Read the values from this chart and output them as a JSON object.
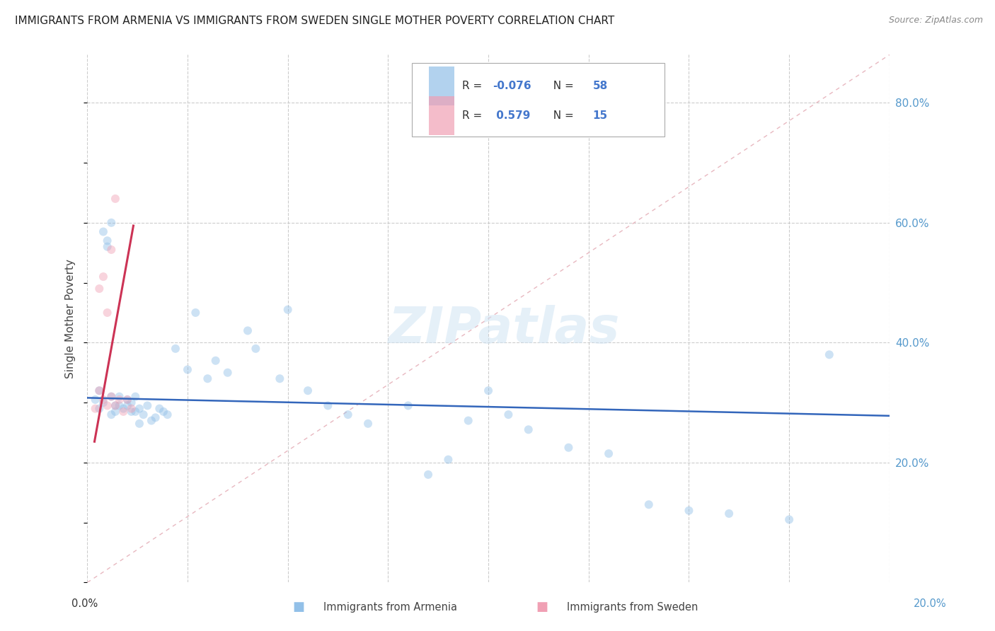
{
  "title": "IMMIGRANTS FROM ARMENIA VS IMMIGRANTS FROM SWEDEN SINGLE MOTHER POVERTY CORRELATION CHART",
  "source": "Source: ZipAtlas.com",
  "ylabel": "Single Mother Poverty",
  "legend_label1": "Immigrants from Armenia",
  "legend_label2": "Immigrants from Sweden",
  "yaxis_labels": [
    "20.0%",
    "40.0%",
    "60.0%",
    "80.0%"
  ],
  "yaxis_values": [
    0.2,
    0.4,
    0.6,
    0.8
  ],
  "armenia_color": "#92c0e8",
  "sweden_color": "#f0a0b4",
  "armenia_trend_color": "#3366bb",
  "sweden_trend_color": "#cc3355",
  "diagonal_color": "#ddbbbb",
  "background_color": "#ffffff",
  "grid_color": "#cccccc",
  "title_color": "#222222",
  "source_color": "#888888",
  "right_axis_color": "#5599cc",
  "marker_size": 75,
  "marker_alpha": 0.45,
  "xlim": [
    0.0,
    0.2
  ],
  "ylim": [
    0.0,
    0.88
  ],
  "armenia_trend_x": [
    0.0,
    0.2
  ],
  "armenia_trend_y": [
    0.308,
    0.278
  ],
  "sweden_trend_x": [
    0.0018,
    0.0115
  ],
  "sweden_trend_y": [
    0.235,
    0.595
  ]
}
